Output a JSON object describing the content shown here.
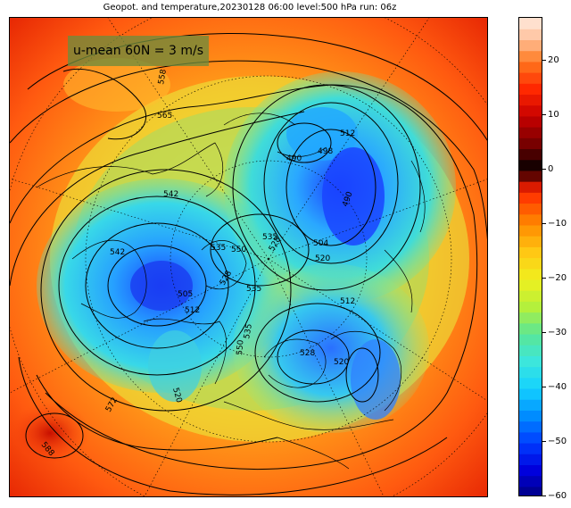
{
  "map": {
    "title": "Geopot. and temperature,20230128 06:00 level:500 hPa run: 06z",
    "umean_label": "u-mean 60N = 3 m/s",
    "contour_labels": [
      "565",
      "558",
      "542",
      "535",
      "550",
      "528",
      "535",
      "490",
      "498",
      "512",
      "490",
      "504",
      "520",
      "512",
      "505",
      "528",
      "535",
      "550",
      "512",
      "520",
      "520",
      "528",
      "542",
      "572",
      "588",
      "535"
    ]
  },
  "colorbar": {
    "ticks": [
      "20",
      "10",
      "0",
      "−10",
      "−20",
      "−30",
      "−40",
      "−50",
      "−60"
    ],
    "min": -60,
    "max": 28,
    "colors": {
      "cold_extreme": "#00008b",
      "cold": "#0050ff",
      "cyan": "#20d0ff",
      "green": "#60e090",
      "yellow": "#f0f020",
      "orange": "#ff9000",
      "red": "#ff2000",
      "dark_red": "#800000",
      "black": "#000000",
      "warm_top": "#ffe8d8"
    }
  }
}
